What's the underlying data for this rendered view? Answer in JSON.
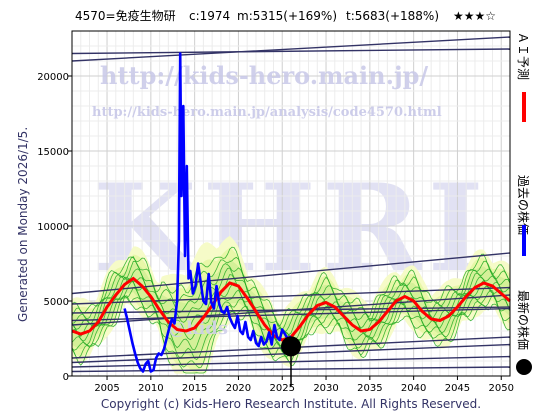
{
  "header": {
    "code_name": "4570=免疫生物研",
    "c_text": "c:1974",
    "m_text": "m:5315(+169%)",
    "t_text": "t:5683(+188%)",
    "stars": "★★★☆"
  },
  "side_label": "Generated on Monday 2026/1/5.",
  "footer": "Copyright (c) Kids-Hero Research Institute. All Rights Reserved.",
  "watermarks": {
    "url_top": "http://kids-hero.main.jp/",
    "url_analysis": "http://kids-hero.main.jp/analysis/code4570.html",
    "khri": "KHRI",
    "mid": "@kids"
  },
  "legend": [
    {
      "label": "ＡＩ予測",
      "color": "#ff0000"
    },
    {
      "label": "過去の株価",
      "color": "#0000ff"
    },
    {
      "label": "最新の株価",
      "color": "#000000"
    }
  ],
  "chart_data": {
    "type": "line",
    "xlim": [
      2001,
      2051
    ],
    "ylim": [
      0,
      23000
    ],
    "x_ticks": [
      2005,
      2010,
      2015,
      2020,
      2025,
      2030,
      2035,
      2040,
      2045,
      2050
    ],
    "y_ticks": [
      0,
      5000,
      10000,
      15000,
      20000
    ],
    "grid": true,
    "legend_position": "right",
    "latest_point": {
      "x": 2026.0,
      "y": 1974
    },
    "past_price": {
      "x": [
        2007.0,
        2007.3,
        2007.6,
        2007.9,
        2008.2,
        2008.5,
        2008.8,
        2009.1,
        2009.4,
        2009.7,
        2010.0,
        2010.3,
        2010.6,
        2010.9,
        2011.2,
        2011.5,
        2011.8,
        2012.1,
        2012.4,
        2012.7,
        2013.0,
        2013.2,
        2013.35,
        2013.5,
        2013.7,
        2013.9,
        2014.1,
        2014.3,
        2014.5,
        2014.8,
        2015.1,
        2015.4,
        2015.7,
        2016.0,
        2016.3,
        2016.6,
        2016.9,
        2017.2,
        2017.5,
        2017.8,
        2018.1,
        2018.4,
        2018.7,
        2019.0,
        2019.3,
        2019.6,
        2019.9,
        2020.2,
        2020.5,
        2020.8,
        2021.1,
        2021.4,
        2021.7,
        2022.0,
        2022.3,
        2022.6,
        2022.9,
        2023.2,
        2023.5,
        2023.8,
        2024.1,
        2024.4,
        2024.7,
        2025.0,
        2025.3,
        2025.6,
        2025.9,
        2026.0
      ],
      "y": [
        4500,
        3800,
        3000,
        2200,
        1500,
        900,
        500,
        300,
        800,
        1000,
        300,
        400,
        1200,
        1500,
        1400,
        1800,
        2500,
        3200,
        3800,
        3500,
        5000,
        9000,
        21500,
        12000,
        18000,
        8000,
        14000,
        6500,
        7000,
        5500,
        6000,
        7500,
        6200,
        5000,
        4800,
        6800,
        4900,
        4500,
        6000,
        4800,
        4300,
        4200,
        4600,
        3900,
        3500,
        3200,
        4000,
        3000,
        2800,
        3600,
        2600,
        2400,
        3000,
        2200,
        2000,
        2600,
        2100,
        2300,
        2900,
        2100,
        3400,
        2600,
        2400,
        3100,
        2800,
        2500,
        2600,
        1974
      ]
    },
    "ai_forecast": {
      "x": [
        2001,
        2002,
        2003,
        2004,
        2005,
        2006,
        2007,
        2008,
        2009,
        2010,
        2011,
        2012,
        2013,
        2014,
        2015,
        2016,
        2017,
        2018,
        2019,
        2020,
        2021,
        2022,
        2023,
        2024,
        2025,
        2026,
        2027,
        2028,
        2029,
        2030,
        2031,
        2032,
        2033,
        2034,
        2035,
        2036,
        2037,
        2038,
        2039,
        2040,
        2041,
        2042,
        2043,
        2044,
        2045,
        2046,
        2047,
        2048,
        2049,
        2050,
        2051
      ],
      "y": [
        3000,
        2800,
        3000,
        3600,
        4600,
        5400,
        6100,
        6500,
        6000,
        5300,
        4400,
        3600,
        3100,
        3000,
        3200,
        3900,
        4700,
        5600,
        6200,
        6000,
        5200,
        4300,
        3400,
        2700,
        2400,
        2600,
        3300,
        4100,
        4700,
        4900,
        4600,
        4000,
        3400,
        3000,
        3100,
        3600,
        4300,
        5000,
        5300,
        5000,
        4300,
        3800,
        3700,
        4000,
        4600,
        5300,
        5900,
        6200,
        6000,
        5500,
        5000
      ]
    },
    "trend_lines": [
      {
        "x": [
          2001,
          2051
        ],
        "y": [
          21000,
          22600
        ]
      },
      {
        "x": [
          2001,
          2051
        ],
        "y": [
          21500,
          21800
        ]
      },
      {
        "x": [
          2001,
          2051
        ],
        "y": [
          5500,
          8200
        ]
      },
      {
        "x": [
          2001,
          2051
        ],
        "y": [
          4800,
          5900
        ]
      },
      {
        "x": [
          2001,
          2051
        ],
        "y": [
          4200,
          4600
        ]
      },
      {
        "x": [
          2001,
          2051
        ],
        "y": [
          3700,
          4500
        ]
      },
      {
        "x": [
          2001,
          2051
        ],
        "y": [
          3400,
          5400
        ]
      },
      {
        "x": [
          2001,
          2051
        ],
        "y": [
          1200,
          2600
        ]
      },
      {
        "x": [
          2001,
          2051
        ],
        "y": [
          900,
          2100
        ]
      },
      {
        "x": [
          2001,
          2051
        ],
        "y": [
          600,
          1300
        ]
      },
      {
        "x": [
          2001,
          2051
        ],
        "y": [
          300,
          600
        ]
      }
    ]
  }
}
